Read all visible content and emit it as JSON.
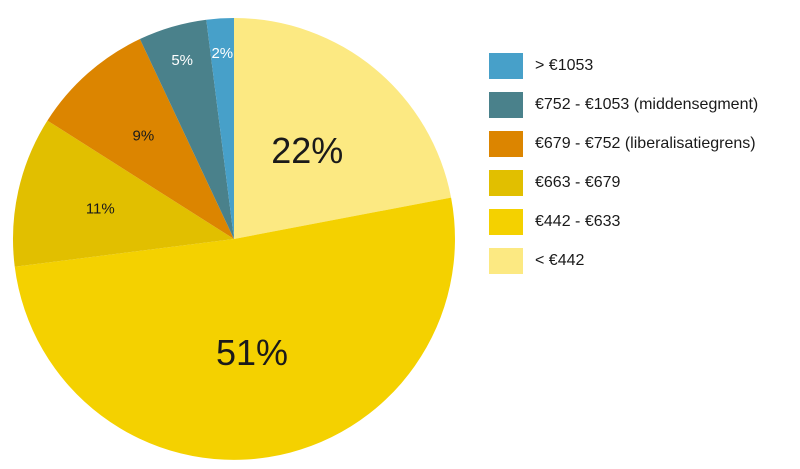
{
  "chart_data": {
    "type": "pie",
    "title": "",
    "legend_position": "right",
    "slices": [
      {
        "label": "< €442",
        "value": 22,
        "display": "22%",
        "color": "#fce982",
        "label_color": "#1a1a1a"
      },
      {
        "label": "€442 - €633",
        "value": 51,
        "display": "51%",
        "color": "#f4d100",
        "label_color": "#1a1a1a"
      },
      {
        "label": "€663 - €679",
        "value": 11,
        "display": "11%",
        "color": "#e1bf00",
        "label_color": "#1a1a1a"
      },
      {
        "label": "€679 - €752 (liberalisatiegrens)",
        "value": 9,
        "display": "9%",
        "color": "#dc8500",
        "label_color": "#1a1a1a"
      },
      {
        "label": "€752 - €1053 (middensegment)",
        "value": 5,
        "display": "5%",
        "color": "#4a818b",
        "label_color": "#ffffff"
      },
      {
        "label": "> €1053",
        "value": 2,
        "display": "2%",
        "color": "#47a0c9",
        "label_color": "#ffffff"
      }
    ],
    "legend_order": [
      "> €1053",
      "€752 - €1053 (middensegment)",
      "€679 - €752 (liberalisatiegrens)",
      "€663 - €679",
      "€442 - €633",
      "< €442"
    ]
  }
}
